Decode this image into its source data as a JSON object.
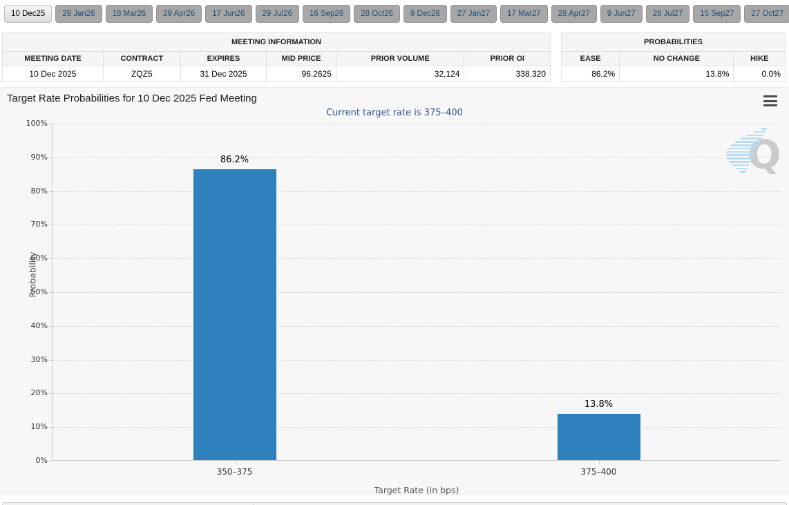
{
  "tabs": [
    {
      "label": "10 Dec25",
      "active": true
    },
    {
      "label": "28 Jan26",
      "active": false
    },
    {
      "label": "18 Mar26",
      "active": false
    },
    {
      "label": "29 Apr26",
      "active": false
    },
    {
      "label": "17 Jun26",
      "active": false
    },
    {
      "label": "29 Jul26",
      "active": false
    },
    {
      "label": "16 Sep26",
      "active": false
    },
    {
      "label": "28 Oct26",
      "active": false
    },
    {
      "label": "9 Dec26",
      "active": false
    },
    {
      "label": "27 Jan27",
      "active": false
    },
    {
      "label": "17 Mar27",
      "active": false
    },
    {
      "label": "28 Apr27",
      "active": false
    },
    {
      "label": "9 Jun27",
      "active": false
    },
    {
      "label": "28 Jul27",
      "active": false
    },
    {
      "label": "15 Sep27",
      "active": false
    },
    {
      "label": "27 Oct27",
      "active": false
    }
  ],
  "meeting_info": {
    "group_header": "MEETING INFORMATION",
    "columns": [
      "MEETING DATE",
      "CONTRACT",
      "EXPIRES",
      "MID PRICE",
      "PRIOR VOLUME",
      "PRIOR OI"
    ],
    "row": [
      "10 Dec 2025",
      "ZQZ5",
      "31 Dec 2025",
      "96.2625",
      "32,124",
      "338,320"
    ]
  },
  "probabilities": {
    "group_header": "PROBABILITIES",
    "columns": [
      "EASE",
      "NO CHANGE",
      "HIKE"
    ],
    "row": [
      "86.2%",
      "13.8%",
      "0.0%"
    ]
  },
  "chart": {
    "title": "Target Rate Probabilities for 10 Dec 2025 Fed Meeting",
    "subtitle": "Current target rate is 375–400",
    "watermark_letter": "Q",
    "colors": {
      "bar": "#2e81bd",
      "subtitle_text": "#33518f",
      "watermark_dash": "#b9dcf0"
    }
  },
  "chart_data": {
    "type": "bar",
    "title": "Target Rate Probabilities for 10 Dec 2025 Fed Meeting",
    "subtitle": "Current target rate is 375–400",
    "categories": [
      "350–375",
      "375–400"
    ],
    "values": [
      86.2,
      13.8
    ],
    "labels": [
      "86.2%",
      "13.8%"
    ],
    "xlabel": "Target Rate (in bps)",
    "ylabel": "Probability",
    "ylim": [
      0,
      100
    ],
    "yticks": [
      "0%",
      "10%",
      "20%",
      "30%",
      "40%",
      "50%",
      "60%",
      "70%",
      "80%",
      "90%",
      "100%"
    ],
    "grid": "dotted horizontal gridlines",
    "legend": "none",
    "bar_color": "#2e81bd"
  }
}
